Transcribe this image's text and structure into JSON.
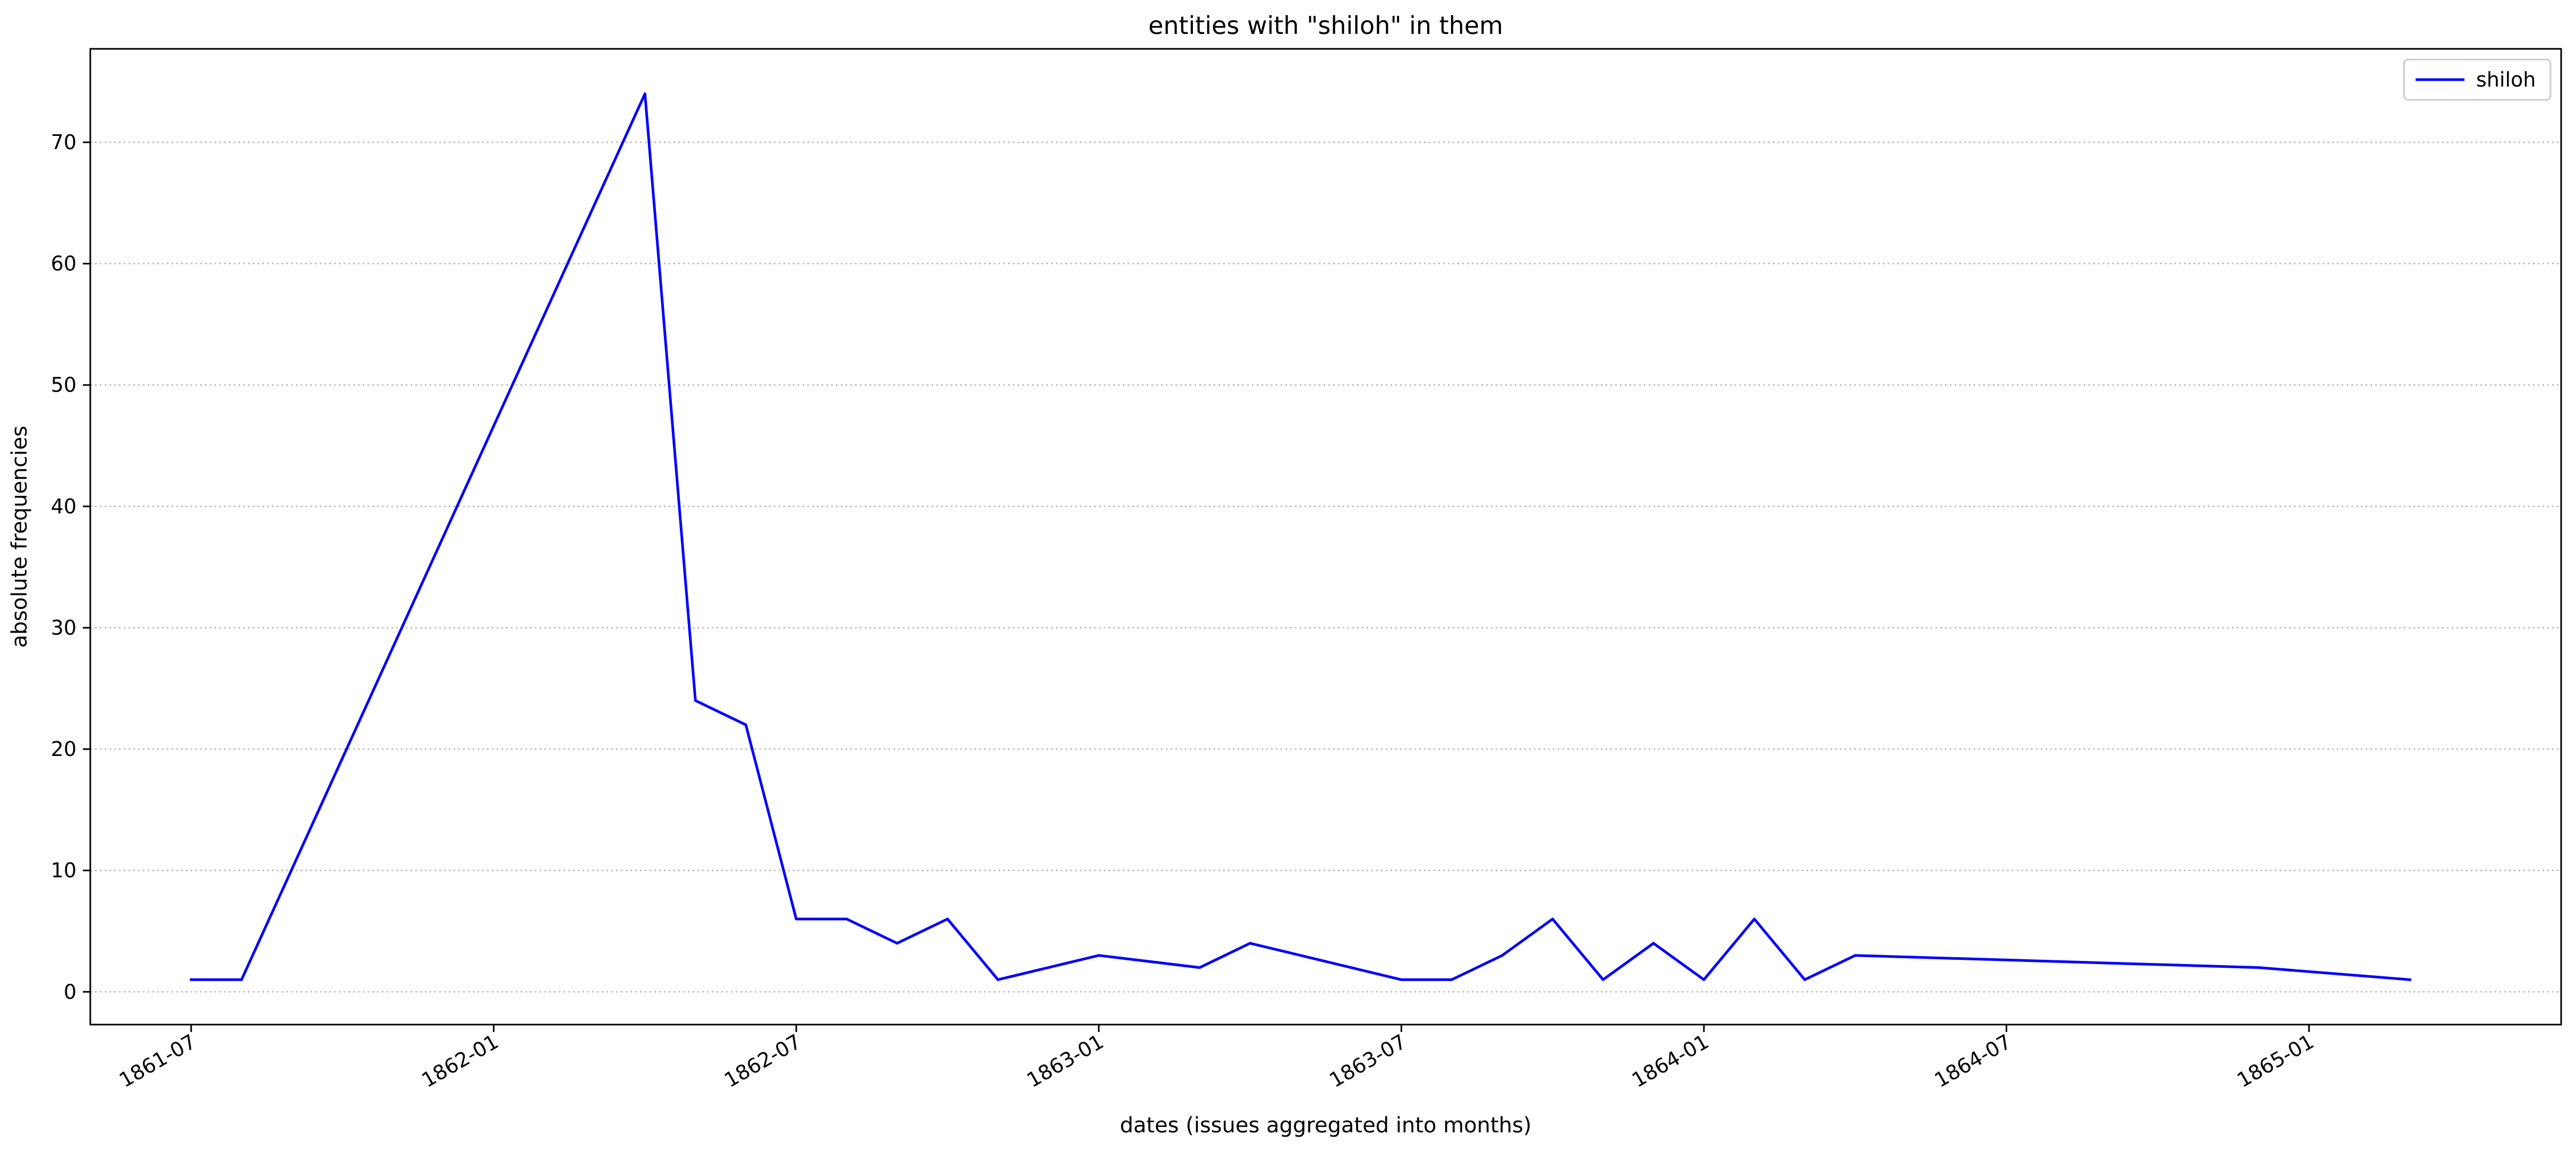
{
  "chart_data": {
    "type": "line",
    "title": "entities with \"shiloh\" in them",
    "xlabel": "dates (issues aggregated into months)",
    "ylabel": "absolute frequencies",
    "x_tick_labels": [
      "1861-07",
      "1862-01",
      "1862-07",
      "1863-01",
      "1863-07",
      "1864-01",
      "1864-07",
      "1865-01"
    ],
    "y_tick_labels": [
      "0",
      "10",
      "20",
      "30",
      "40",
      "50",
      "60",
      "70"
    ],
    "y_ticks": [
      0,
      10,
      20,
      30,
      40,
      50,
      60,
      70
    ],
    "xlim": [
      "1861-05",
      "1865-06"
    ],
    "ylim": [
      -2.7,
      77.7
    ],
    "grid": "horizontal dotted",
    "legend_position": "top-right",
    "series": [
      {
        "name": "shiloh",
        "color": "#0000ff",
        "x": [
          "1861-07",
          "1861-08",
          "1862-04",
          "1862-05",
          "1862-06",
          "1862-07",
          "1862-08",
          "1862-09",
          "1862-10",
          "1862-11",
          "1863-01",
          "1863-03",
          "1863-04",
          "1863-07",
          "1863-08",
          "1863-09",
          "1863-10",
          "1863-11",
          "1863-12",
          "1864-01",
          "1864-02",
          "1864-03",
          "1864-04",
          "1864-12",
          "1865-03"
        ],
        "values": [
          1,
          1,
          74,
          24,
          22,
          6,
          6,
          4,
          6,
          1,
          3,
          2,
          4,
          1,
          1,
          3,
          6,
          1,
          4,
          1,
          6,
          1,
          3,
          2,
          1
        ]
      }
    ]
  }
}
